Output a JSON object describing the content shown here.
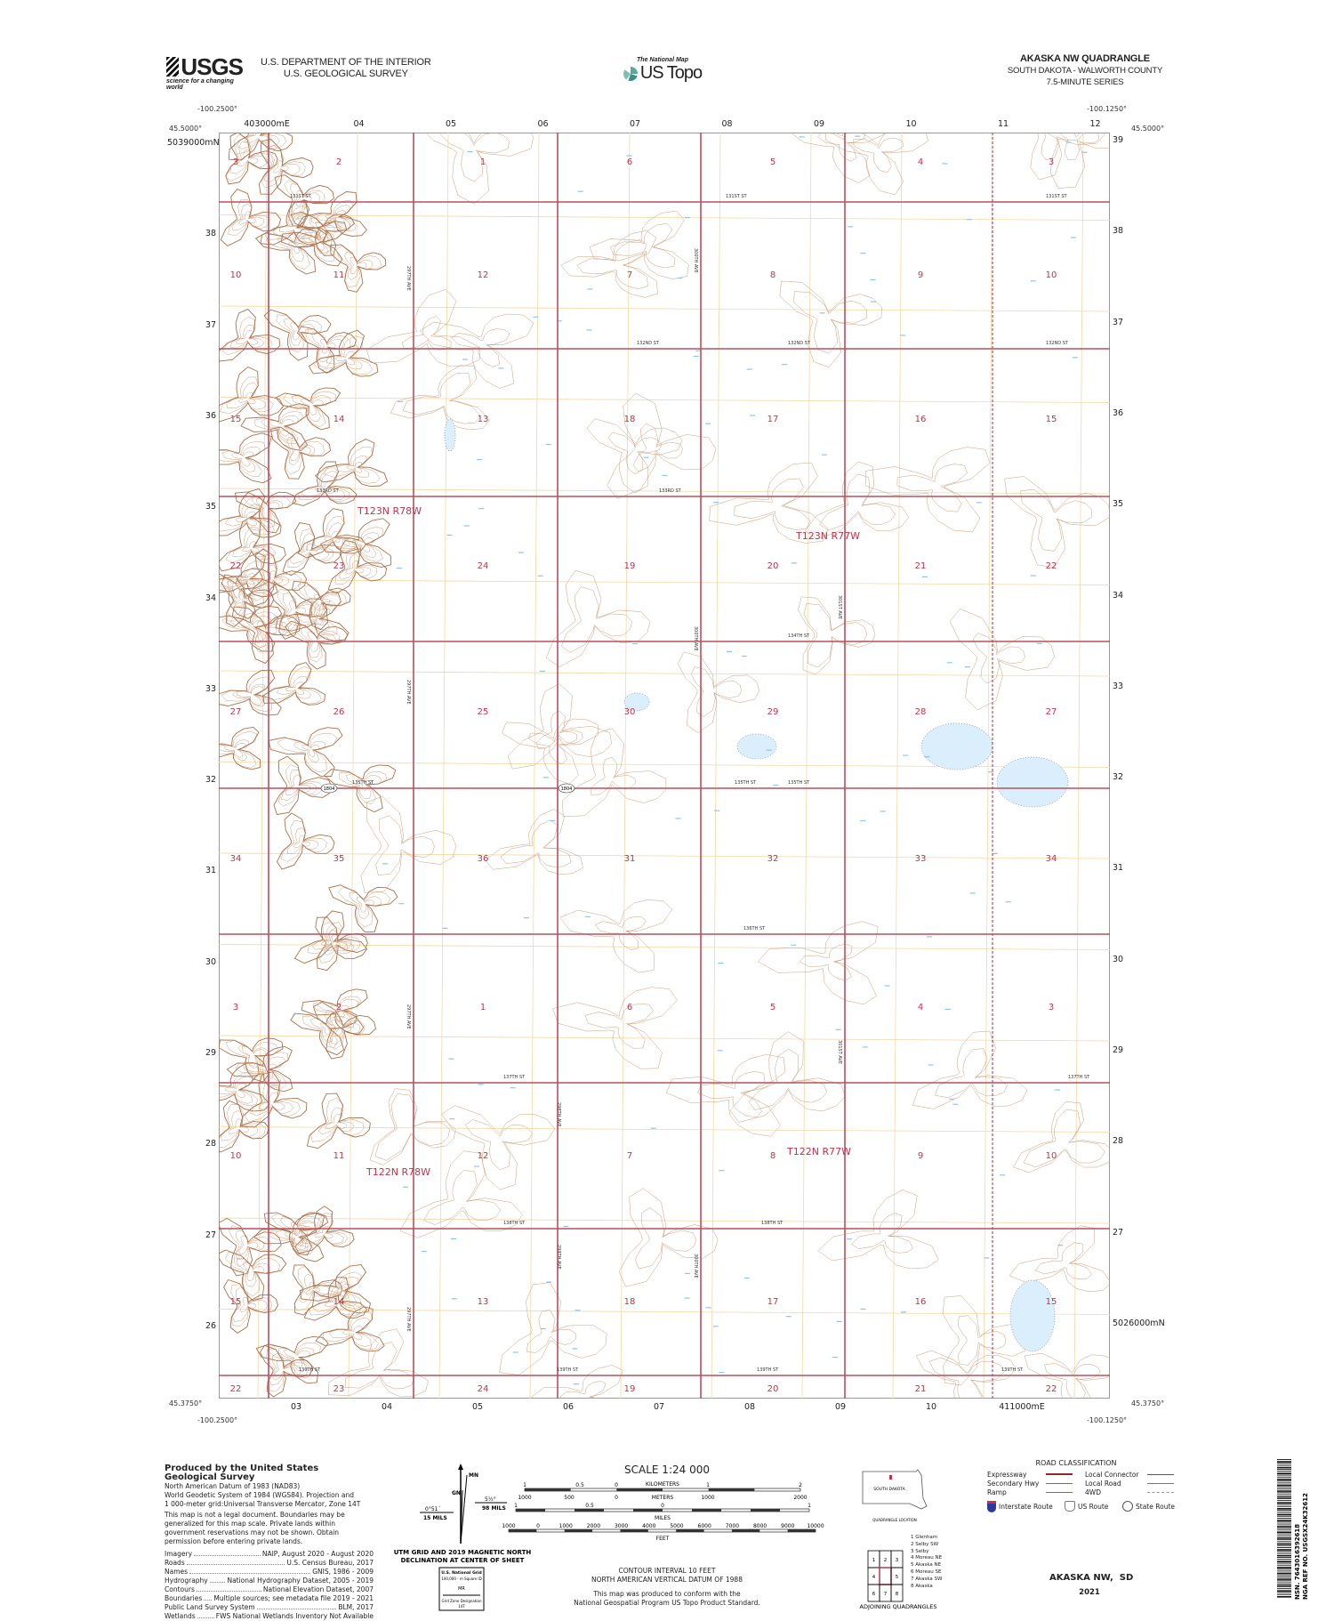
{
  "header": {
    "usgs_logo": "USGS",
    "usgs_tagline": "science for a changing world",
    "department": "U.S. DEPARTMENT OF THE INTERIOR",
    "survey": "U.S. GEOLOGICAL SURVEY",
    "national_map": "The National Map",
    "us_topo": "US Topo",
    "quad_title": "AKASKA NW QUADRANGLE",
    "state_county": "SOUTH DAKOTA - WALWORTH COUNTY",
    "series": "7.5-MINUTE SERIES"
  },
  "map": {
    "corners": {
      "nw_lon": "-100.2500°",
      "nw_lat": "45.5000°",
      "ne_lon": "-100.1250°",
      "ne_lat": "45.5000°",
      "sw_lon": "-100.2500°",
      "sw_lat": "45.3750°",
      "se_lon": "-100.1250°",
      "se_lat": "45.3750°"
    },
    "easting_top": [
      "403000mE",
      "04",
      "05",
      "06",
      "07",
      "08",
      "09",
      "10",
      "11",
      "12"
    ],
    "easting_bottom": [
      "03",
      "04",
      "05",
      "06",
      "07",
      "08",
      "09",
      "10",
      "411000mE"
    ],
    "northing_left": [
      "5039000mN",
      "38",
      "37",
      "36",
      "35",
      "34",
      "33",
      "32",
      "31",
      "30",
      "29",
      "28",
      "27",
      "26"
    ],
    "northing_right": [
      "39",
      "38",
      "37",
      "36",
      "35",
      "34",
      "33",
      "32",
      "31",
      "30",
      "29",
      "28",
      "27",
      "5026000mN"
    ],
    "section_rows": [
      [
        "3",
        "2",
        "1",
        "6",
        "5",
        "4",
        "3"
      ],
      [
        "10",
        "11",
        "12",
        "7",
        "8",
        "9",
        "10"
      ],
      [
        "15",
        "14",
        "13",
        "18",
        "17",
        "16",
        "15"
      ],
      [
        "22",
        "23",
        "24",
        "19",
        "20",
        "21",
        "22"
      ],
      [
        "27",
        "26",
        "25",
        "30",
        "29",
        "28",
        "27"
      ],
      [
        "34",
        "35",
        "36",
        "31",
        "32",
        "33",
        "34"
      ],
      [
        "3",
        "2",
        "1",
        "6",
        "5",
        "4",
        "3"
      ],
      [
        "10",
        "11",
        "12",
        "7",
        "8",
        "9",
        "10"
      ],
      [
        "15",
        "14",
        "13",
        "18",
        "17",
        "16",
        "15"
      ],
      [
        "22",
        "23",
        "24",
        "19",
        "20",
        "21",
        "22"
      ]
    ],
    "townships": [
      "T123N R78W",
      "T123N R77W",
      "T122N R78W",
      "T122N R77W"
    ],
    "streets": [
      "131ST ST",
      "131ST ST",
      "131ST ST",
      "132ND ST",
      "132ND ST",
      "132ND ST",
      "133RD ST",
      "133RD ST",
      "134TH ST",
      "135TH ST",
      "135TH ST",
      "135TH ST",
      "136TH ST",
      "137TH ST",
      "137TH ST",
      "138TH ST",
      "138TH ST",
      "139TH ST",
      "139TH ST",
      "139TH ST",
      "139TH ST"
    ],
    "avenues": [
      "297TH AVE",
      "297TH AVE",
      "297TH AVE",
      "297TH AVE",
      "298TH AVE",
      "299TH AVE",
      "300TH AVE",
      "300TH AVE",
      "300TH AVE",
      "301ST AVE",
      "301ST AVE"
    ],
    "route_shield": "1804",
    "colors": {
      "section_line": "#b8505f",
      "contour": "#c9a080",
      "index_contour": "#a8734f",
      "water": "#8fc4e8",
      "grid": "#f2d9a6",
      "section_number": "#c0334d"
    }
  },
  "footer": {
    "produced_by": "Produced by the United States Geological Survey",
    "datum_lines": [
      "North American Datum of 1983 (NAD83)",
      "World Geodetic System of 1984 (WGS84). Projection and",
      "1 000-meter grid:Universal Transverse Mercator, Zone 14T"
    ],
    "legal_note": "This map is not a legal document. Boundaries may be generalized for this map scale. Private lands within government reservations may not be shown. Obtain permission before entering private lands.",
    "sources": [
      {
        "label": "Imagery",
        "value": "NAIP, August 2020 - August 2020"
      },
      {
        "label": "Roads",
        "value": "U.S. Census Bureau, 2017"
      },
      {
        "label": "Names",
        "value": "GNIS, 1986 - 2009"
      },
      {
        "label": "Hydrography",
        "value": "National Hydrography Dataset, 2005 - 2019"
      },
      {
        "label": "Contours",
        "value": "National Elevation Dataset, 2007"
      },
      {
        "label": "Boundaries",
        "value": "Multiple sources; see metadata file 2019 - 2021"
      },
      {
        "label": "Public Land Survey System",
        "value": "BLM, 2017"
      },
      {
        "label": "Wetlands",
        "value": "FWS National Wetlands Inventory Not Available"
      }
    ],
    "declination": {
      "mn": "MN",
      "gn": "GN",
      "left_angle": "0°51´",
      "left_mils": "15 MILS",
      "right_angle": "5½°",
      "right_mils": "98 MILS",
      "caption1": "UTM GRID AND 2019 MAGNETIC NORTH",
      "caption2": "DECLINATION AT CENTER OF SHEET"
    },
    "national_grid": {
      "title": "U.S. National Grid",
      "subtitle": "100,000 - m Square ID",
      "square": "MR",
      "gzd_label": "Grid Zone Designation",
      "gzd": "14T"
    },
    "scale": {
      "title": "SCALE 1:24 000",
      "km_ticks": [
        "1",
        "0.5",
        "0",
        "1",
        "2"
      ],
      "km_label": "KILOMETERS",
      "m_ticks": [
        "1000",
        "500",
        "0",
        "1000",
        "2000"
      ],
      "m_label": "METERS",
      "mi_ticks": [
        "1",
        "0.5",
        "0",
        "1"
      ],
      "mi_label": "MILES",
      "ft_ticks": [
        "1000",
        "0",
        "1000",
        "2000",
        "3000",
        "4000",
        "5000",
        "6000",
        "7000",
        "8000",
        "9000",
        "10000"
      ],
      "ft_label": "FEET",
      "contour_interval": "CONTOUR INTERVAL 10 FEET",
      "vertical_datum": "NORTH AMERICAN VERTICAL DATUM OF 1988",
      "standard1": "This map was produced to conform with the",
      "standard2": "National Geospatial Program US Topo Product Standard."
    },
    "quad_location": {
      "state": "SOUTH DAKOTA",
      "caption": "QUADRANGLE LOCATION"
    },
    "adjoining": {
      "cells": [
        "1",
        "2",
        "3",
        "4",
        "",
        "5",
        "6",
        "7",
        "8"
      ],
      "names": [
        "1 Glenham",
        "2 Selby SW",
        "3 Selby",
        "4 Moreau NE",
        "5 Akaska NE",
        "6 Moreau SE",
        "7 Akaska SW",
        "8 Akaska"
      ],
      "caption": "ADJOINING QUADRANGLES"
    },
    "road_classification": {
      "title": "ROAD CLASSIFICATION",
      "left": [
        "Expressway",
        "Secondary Hwy",
        "Ramp"
      ],
      "right": [
        "Local Connector",
        "Local Road",
        "4WD"
      ],
      "routes": [
        "Interstate Route",
        "US Route",
        "State Route"
      ]
    },
    "sheet_title": "AKASKA NW,  SD",
    "year": "2021",
    "barcode_text": "NSN. 7643016392618",
    "nga_ref": "NGA REF NO. USGSX24K32612"
  }
}
